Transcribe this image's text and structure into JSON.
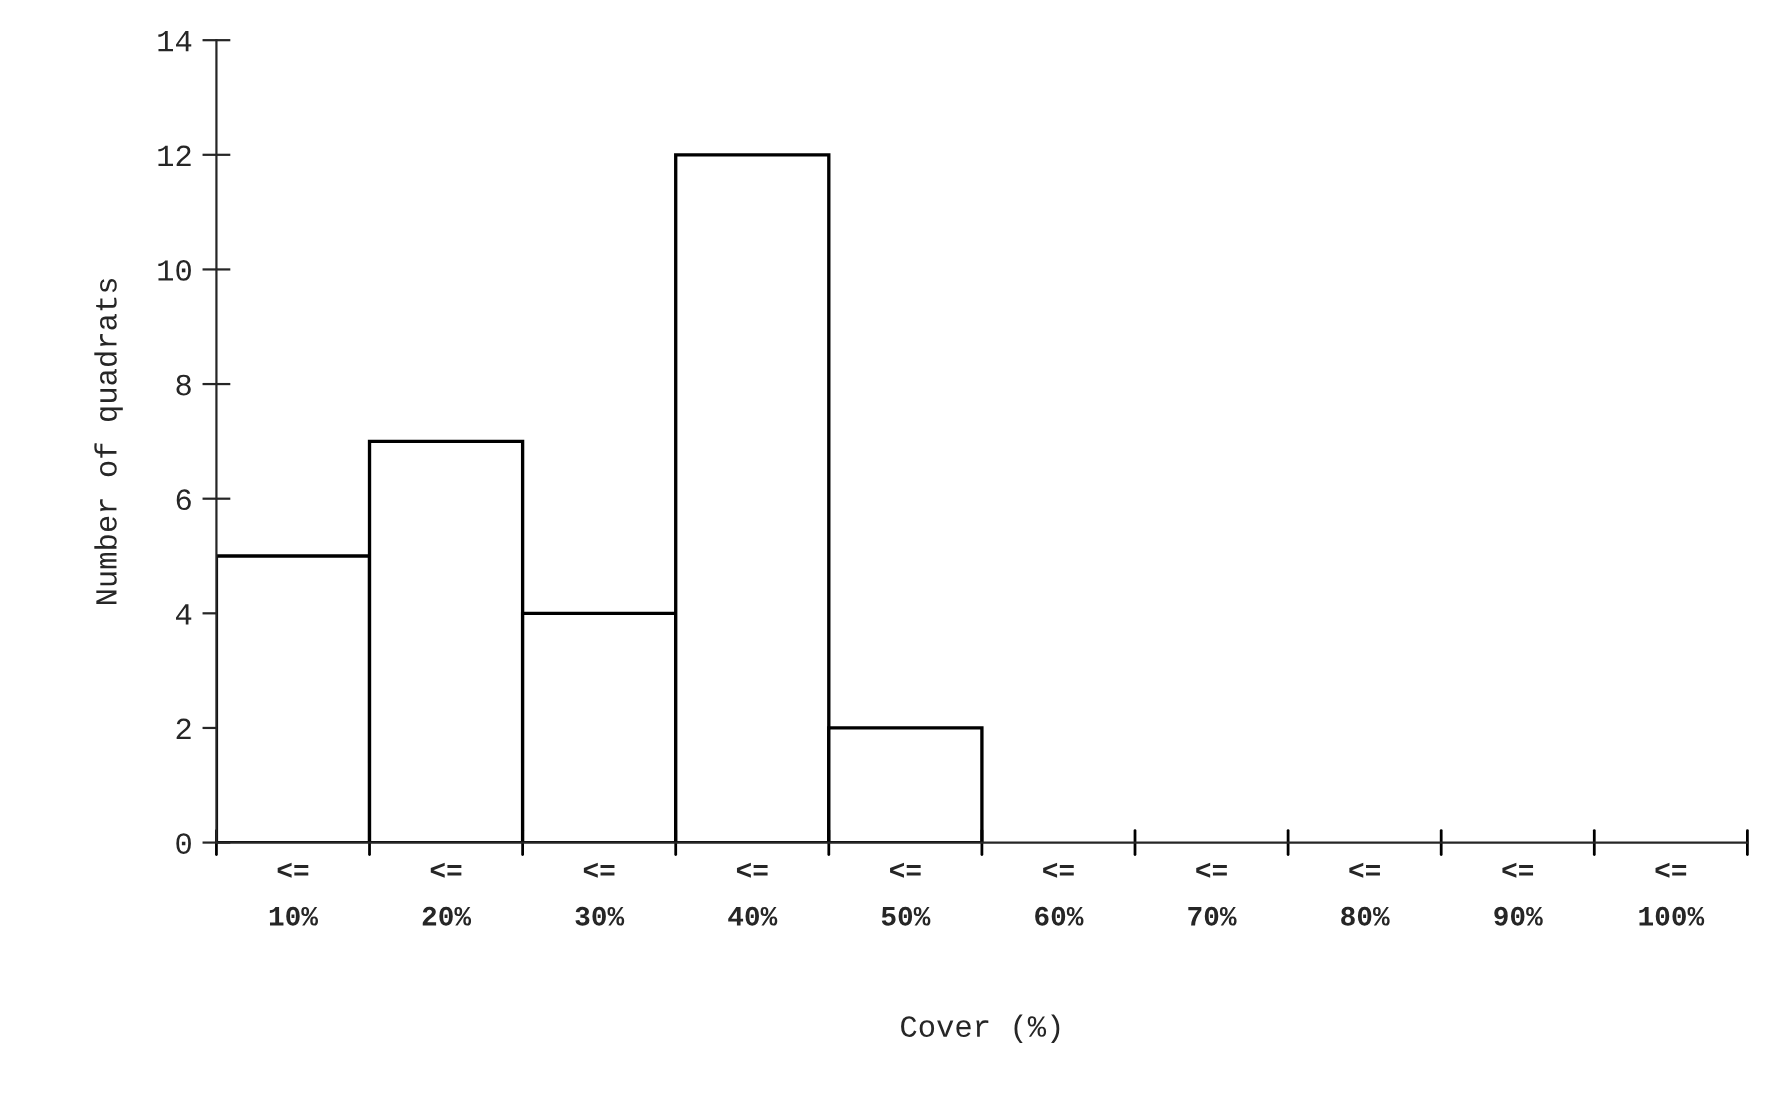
{
  "chart_data": {
    "type": "bar",
    "xlabel": "Cover (%)",
    "ylabel": "Number of quadrats",
    "categories": [
      "<=\n10%",
      "<=\n20%",
      "<=\n30%",
      "<=\n40%",
      "<=\n50%",
      "<=\n60%",
      "<=\n70%",
      "<=\n80%",
      "<=\n90%",
      "<=\n100%"
    ],
    "values": [
      5,
      7,
      4,
      12,
      2,
      0,
      0,
      0,
      0,
      0
    ],
    "color": "#ffffff",
    "ylim": [
      0,
      14
    ],
    "yticks": [
      0,
      2,
      4,
      6,
      8,
      10,
      12,
      14
    ],
    "grid": false,
    "legend": false
  }
}
